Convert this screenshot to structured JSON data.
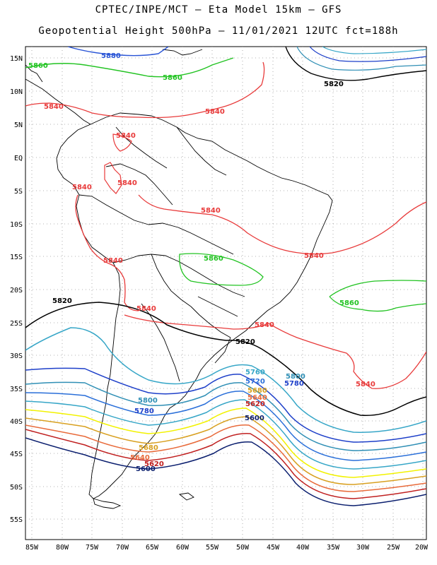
{
  "title_line1": "CPTEC/INPE/MCT –  Eta Model 15km – GFS",
  "title_line2": "Geopotential Height 500hPa – 11/01/2021 12UTC fct=188h",
  "lat_labels": [
    "15N",
    "10N",
    "5N",
    "EQ",
    "5S",
    "10S",
    "15S",
    "20S",
    "25S",
    "30S",
    "35S",
    "40S",
    "45S",
    "50S",
    "55S"
  ],
  "lon_labels": [
    "85W",
    "80W",
    "75W",
    "70W",
    "65W",
    "60W",
    "55W",
    "50W",
    "45W",
    "40W",
    "35W",
    "30W",
    "25W",
    "20W"
  ],
  "contour_labels": {
    "c5880_top": "5880",
    "c5860_nw": "5860",
    "c5860_n": "5860",
    "c5820_ne": "5820",
    "c5840_nw": "5840",
    "c5840_n": "5840",
    "c5840_col": "5840",
    "c5840_peru": "5840",
    "c5840_ven": "5840",
    "c5840_bol": "5840",
    "c5840_atl": "5840",
    "c5860_bra": "5860",
    "c5840_chile": "5840",
    "c5820_pac": "5820",
    "c5840_arg": "5840",
    "c5840_sa": "5840",
    "c5860_atl": "5860",
    "c5820_mid": "5820",
    "c5840_se": "5840",
    "c5760_a": "5760",
    "c5800_a": "5800",
    "c5780_a": "5780",
    "c5720_a": "5720",
    "c5680_a": "5680",
    "c5640_a": "5640",
    "c5620_a": "5620",
    "c5600_a": "5600",
    "c5800_b": "5800",
    "c5780_b": "5780",
    "c5680_b": "5680",
    "c5640_b": "5640",
    "c5620_b": "5620",
    "c5600_b": "5600"
  },
  "colors": {
    "c5880": "#2a55d6",
    "c5860": "#22c322",
    "c5840": "#e83a3a",
    "c5820": "#000000",
    "c5800": "#2f8fb5",
    "c5780": "#1d3fc9",
    "c5760": "#36a6c7",
    "c5720": "#2a6fd9",
    "c5700": "#f2f200",
    "c5680": "#d8a020",
    "c5640": "#e86a3a",
    "c5620": "#c02020",
    "c5600": "#0a1e6e",
    "land": "#000000"
  }
}
